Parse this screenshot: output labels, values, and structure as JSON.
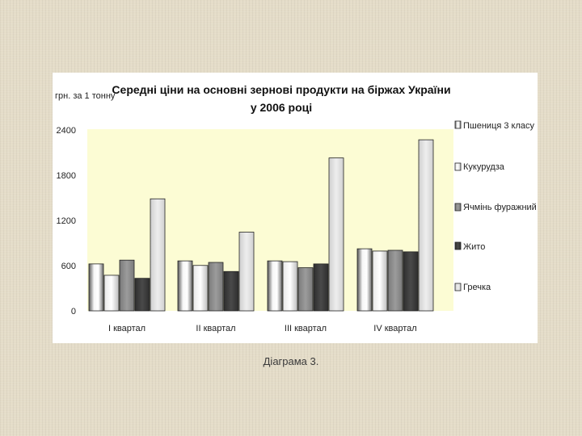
{
  "chart_data": {
    "type": "bar",
    "title_lines": [
      "Середні ціни на основні зернові продукти на біржах України",
      "у 2006 році"
    ],
    "ylabel": "грн. за 1 тонну",
    "xlabel": "",
    "categories": [
      "І квартал",
      "ІІ квартал",
      "ІІІ квартал",
      "ІV квартал"
    ],
    "ylim": [
      0,
      2400
    ],
    "yticks": [
      "0",
      "600",
      "1200",
      "1800",
      "2400"
    ],
    "ytick_values": [
      0,
      600,
      1200,
      1800,
      2400
    ],
    "legend_position": "right",
    "series": [
      {
        "name": "Пшениця 3 класу",
        "values": [
          620,
          660,
          660,
          820
        ],
        "color": "#d4d4d4"
      },
      {
        "name": "Кукурудза",
        "values": [
          470,
          600,
          650,
          790
        ],
        "color": "#c2c2c2"
      },
      {
        "name": "Ячмінь фуражний",
        "values": [
          670,
          640,
          570,
          800
        ],
        "color": "#8a8a8a"
      },
      {
        "name": "Жито",
        "values": [
          430,
          520,
          620,
          780
        ],
        "color": "#3c3c3c"
      },
      {
        "name": "Гречка",
        "values": [
          1480,
          1040,
          2020,
          2260
        ],
        "color": "#dedede"
      }
    ]
  },
  "caption": "Діаграма 3."
}
